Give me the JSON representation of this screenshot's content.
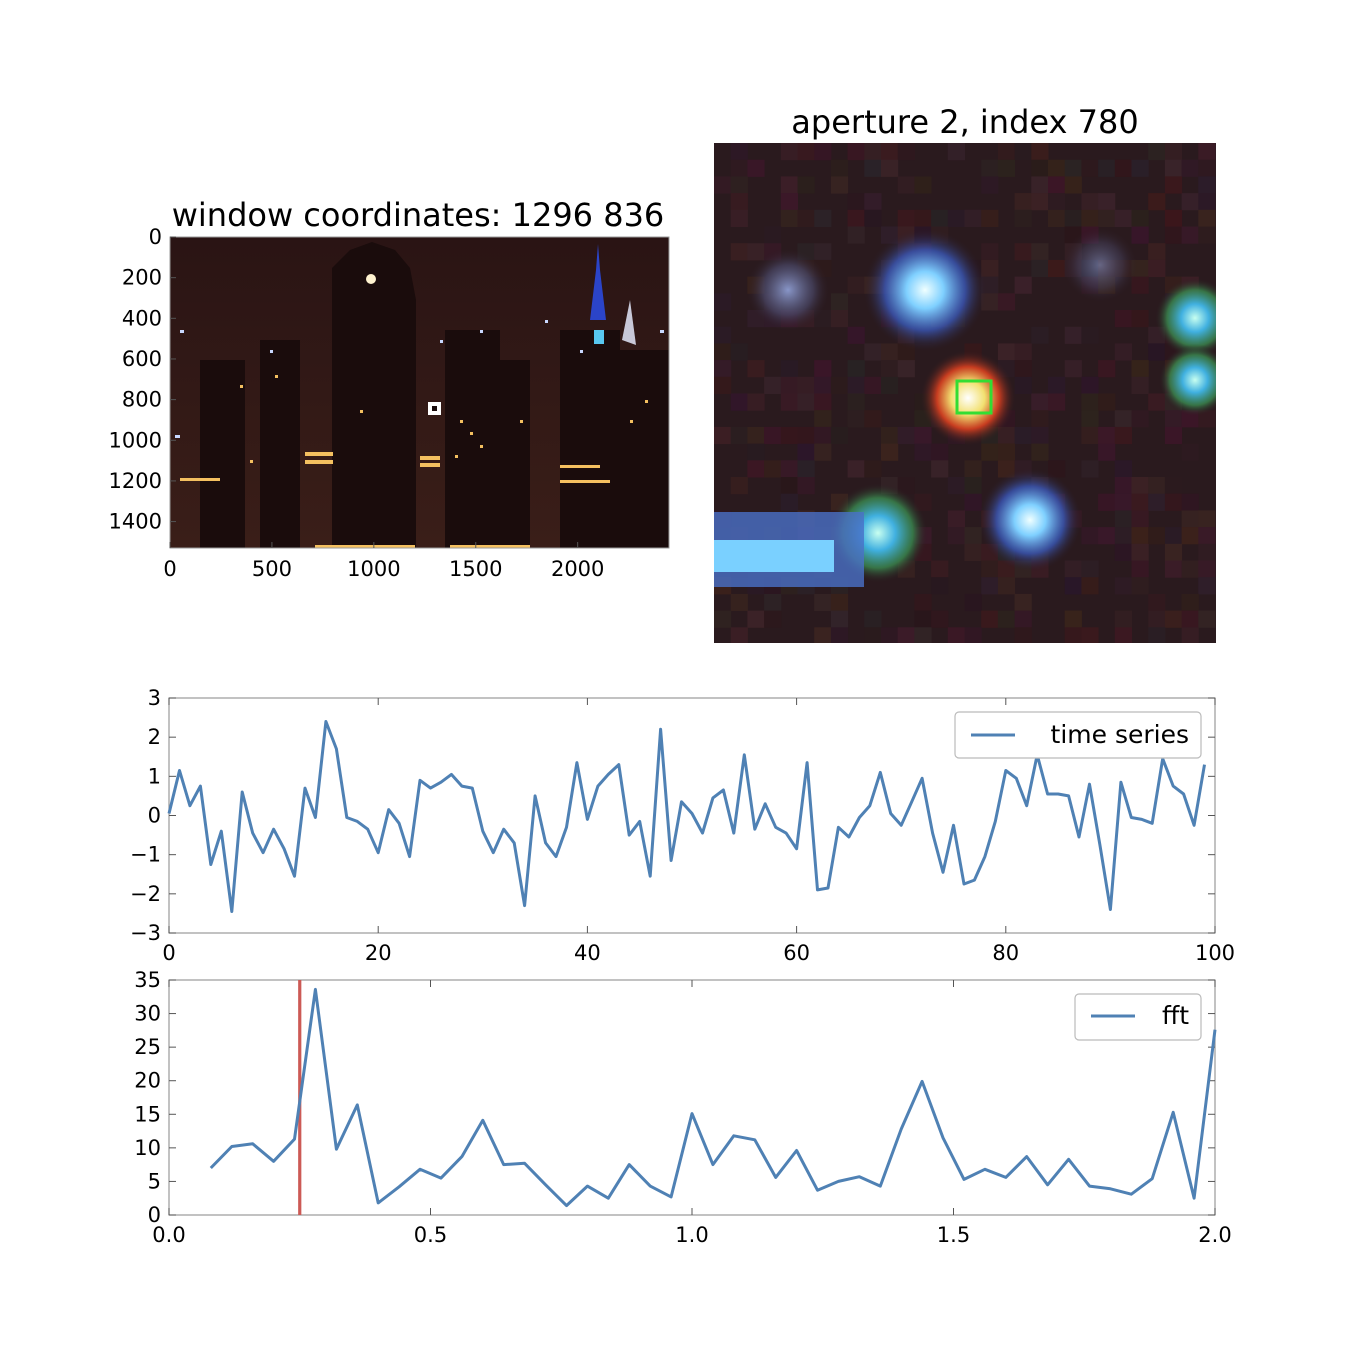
{
  "chart_data": [
    {
      "type": "image",
      "title": "window coordinates: 1296 836",
      "xlim": [
        0,
        2448
      ],
      "ylim": [
        1530,
        0
      ],
      "xticks": [
        0,
        500,
        1000,
        1500,
        2000
      ],
      "xtick_labels": [
        "0",
        "500",
        "1000",
        "1500",
        "2000"
      ],
      "yticks": [
        0,
        200,
        400,
        600,
        800,
        1000,
        1200,
        1400
      ],
      "ytick_labels": [
        "0",
        "200",
        "400",
        "600",
        "800",
        "1000",
        "1200",
        "1400"
      ],
      "marker": {
        "x": 1296,
        "y": 836
      }
    },
    {
      "type": "image",
      "title": "aperture 2, index 780",
      "box_color": "#33dd33"
    },
    {
      "type": "line",
      "x_start": 0,
      "x_step": 1,
      "values": [
        0.05,
        1.15,
        0.25,
        0.75,
        -1.25,
        -0.4,
        -2.45,
        0.6,
        -0.45,
        -0.95,
        -0.35,
        -0.85,
        -1.55,
        0.7,
        -0.05,
        2.4,
        1.7,
        -0.05,
        -0.15,
        -0.35,
        -0.95,
        0.15,
        -0.2,
        -1.05,
        0.9,
        0.7,
        0.85,
        1.05,
        0.75,
        0.7,
        -0.4,
        -0.95,
        -0.35,
        -0.7,
        -2.3,
        0.5,
        -0.7,
        -1.05,
        -0.3,
        1.35,
        -0.1,
        0.75,
        1.05,
        1.3,
        -0.5,
        -0.15,
        -1.55,
        2.2,
        -1.15,
        0.35,
        0.05,
        -0.45,
        0.45,
        0.65,
        -0.45,
        1.55,
        -0.35,
        0.3,
        -0.3,
        -0.45,
        -0.85,
        1.35,
        -1.9,
        -1.85,
        -0.3,
        -0.55,
        -0.05,
        0.25,
        1.1,
        0.05,
        -0.25,
        0.35,
        0.95,
        -0.45,
        -1.45,
        -0.25,
        -1.75,
        -1.65,
        -1.05,
        -0.15,
        1.15,
        0.95,
        0.25,
        1.55,
        0.55,
        0.55,
        0.5,
        -0.55,
        0.8,
        -0.75,
        -2.4,
        0.85,
        -0.05,
        -0.1,
        -0.2,
        1.45,
        0.75,
        0.55,
        -0.25,
        1.3
      ],
      "xlim": [
        0,
        100
      ],
      "ylim": [
        -3,
        3
      ],
      "xticks": [
        0,
        20,
        40,
        60,
        80,
        100
      ],
      "yticks": [
        -3,
        -2,
        -1,
        0,
        1,
        2,
        3
      ],
      "xtick_labels": [
        "0",
        "20",
        "40",
        "60",
        "80",
        "100"
      ],
      "ytick_labels": [
        "−3",
        "−2",
        "−1",
        "0",
        "1",
        "2",
        "3"
      ],
      "series_name": "time series",
      "color": "#4f81b4",
      "legend": "top-right"
    },
    {
      "type": "line",
      "x_start": 0.08,
      "x_step": 0.04,
      "values": [
        7.0,
        10.2,
        10.6,
        8.0,
        11.3,
        33.6,
        9.8,
        16.4,
        1.8,
        4.2,
        6.8,
        5.5,
        8.7,
        14.1,
        7.5,
        7.7,
        4.5,
        1.4,
        4.3,
        2.5,
        7.5,
        4.3,
        2.7,
        15.1,
        7.5,
        11.8,
        11.2,
        5.6,
        9.6,
        3.7,
        5.0,
        5.7,
        4.3,
        12.8,
        19.9,
        11.5,
        5.3,
        6.8,
        5.6,
        8.7,
        4.5,
        8.3,
        4.3,
        3.9,
        3.1,
        5.4,
        15.3,
        2.5,
        27.6
      ],
      "xlim": [
        0.0,
        2.0
      ],
      "ylim": [
        0,
        35
      ],
      "xticks": [
        0.0,
        0.5,
        1.0,
        1.5,
        2.0
      ],
      "yticks": [
        0,
        5,
        10,
        15,
        20,
        25,
        30,
        35
      ],
      "xtick_labels": [
        "0.0",
        "0.5",
        "1.0",
        "1.5",
        "2.0"
      ],
      "ytick_labels": [
        "0",
        "5",
        "10",
        "15",
        "20",
        "25",
        "30",
        "35"
      ],
      "series_name": "fft",
      "color": "#4f81b4",
      "vline": {
        "x": 0.25,
        "color": "#cc5a55"
      },
      "legend": "top-right"
    }
  ]
}
